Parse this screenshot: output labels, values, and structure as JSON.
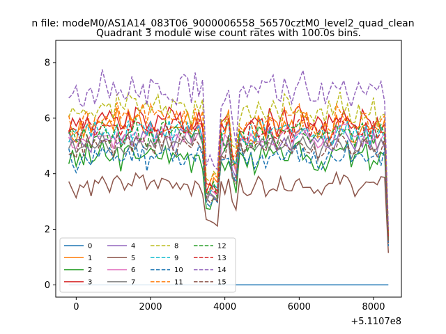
{
  "chart_data": {
    "type": "line",
    "suptitle": "n file: modeM0/AS1A14_083T06_9000006558_56570cztM0_level2_quad_clean",
    "title": "Quadrant 3 module wise count rates with 100.0s bins.",
    "xlabel": "",
    "ylabel": "",
    "x_offset_label": "+5.1107e8",
    "xlim": [
      -550,
      8750
    ],
    "ylim": [
      -0.44,
      8.8
    ],
    "x_ticks": [
      0,
      2000,
      4000,
      6000,
      8000
    ],
    "x_tick_labels": [
      "0",
      "2000",
      "4000",
      "6000",
      "8000"
    ],
    "y_ticks": [
      0,
      2,
      4,
      6,
      8
    ],
    "y_tick_labels": [
      "0",
      "2",
      "4",
      "6",
      "8"
    ],
    "x_start": -200,
    "x_step": 100,
    "x_end": 8400,
    "legend_location": "lower-left",
    "legend_columns": 5,
    "series": [
      {
        "name": "0",
        "color": "#1f77b4",
        "dash": "solid",
        "base": 0.0,
        "amp": 0.0,
        "seed": 1,
        "end": 0.0
      },
      {
        "name": "1",
        "color": "#ff7f0e",
        "dash": "solid",
        "base": 5.7,
        "amp": 0.45,
        "seed": 2,
        "end": 1.7
      },
      {
        "name": "2",
        "color": "#2ca02c",
        "dash": "solid",
        "base": 4.6,
        "amp": 0.4,
        "seed": 3,
        "end": 1.6
      },
      {
        "name": "3",
        "color": "#d62728",
        "dash": "solid",
        "base": 5.9,
        "amp": 0.45,
        "seed": 4,
        "end": 1.7
      },
      {
        "name": "4",
        "color": "#9467bd",
        "dash": "solid",
        "base": 5.2,
        "amp": 0.4,
        "seed": 5,
        "end": 1.6
      },
      {
        "name": "5",
        "color": "#8c564b",
        "dash": "solid",
        "base": 3.6,
        "amp": 0.3,
        "seed": 6,
        "end": 1.15
      },
      {
        "name": "6",
        "color": "#e377c2",
        "dash": "solid",
        "base": 5.3,
        "amp": 0.35,
        "seed": 7,
        "end": 1.6
      },
      {
        "name": "7",
        "color": "#7f7f7f",
        "dash": "solid",
        "base": 5.0,
        "amp": 0.35,
        "seed": 8,
        "end": 1.5
      },
      {
        "name": "8",
        "color": "#bcbd22",
        "dash": "dashed",
        "base": 6.3,
        "amp": 0.45,
        "seed": 9,
        "end": 1.9
      },
      {
        "name": "9",
        "color": "#17becf",
        "dash": "dashed",
        "base": 5.5,
        "amp": 0.4,
        "seed": 10,
        "end": 1.7
      },
      {
        "name": "10",
        "color": "#1f77b4",
        "dash": "dashed",
        "base": 4.6,
        "amp": 0.4,
        "seed": 11,
        "end": 1.4
      },
      {
        "name": "11",
        "color": "#ff7f0e",
        "dash": "dashed",
        "base": 5.9,
        "amp": 0.45,
        "seed": 12,
        "end": 1.8
      },
      {
        "name": "12",
        "color": "#2ca02c",
        "dash": "dashed",
        "base": 5.4,
        "amp": 0.4,
        "seed": 13,
        "end": 1.6
      },
      {
        "name": "13",
        "color": "#d62728",
        "dash": "dashed",
        "base": 5.6,
        "amp": 0.4,
        "seed": 14,
        "end": 1.7
      },
      {
        "name": "14",
        "color": "#9467bd",
        "dash": "dashed",
        "base": 7.0,
        "amp": 0.5,
        "seed": 15,
        "end": 2.0
      },
      {
        "name": "15",
        "color": "#8c564b",
        "dash": "dashed",
        "base": 5.0,
        "amp": 0.35,
        "seed": 16,
        "end": 1.5
      }
    ],
    "dip_windows": [
      [
        3500,
        3800,
        0.62
      ],
      [
        4200,
        4300,
        0.78
      ]
    ]
  }
}
